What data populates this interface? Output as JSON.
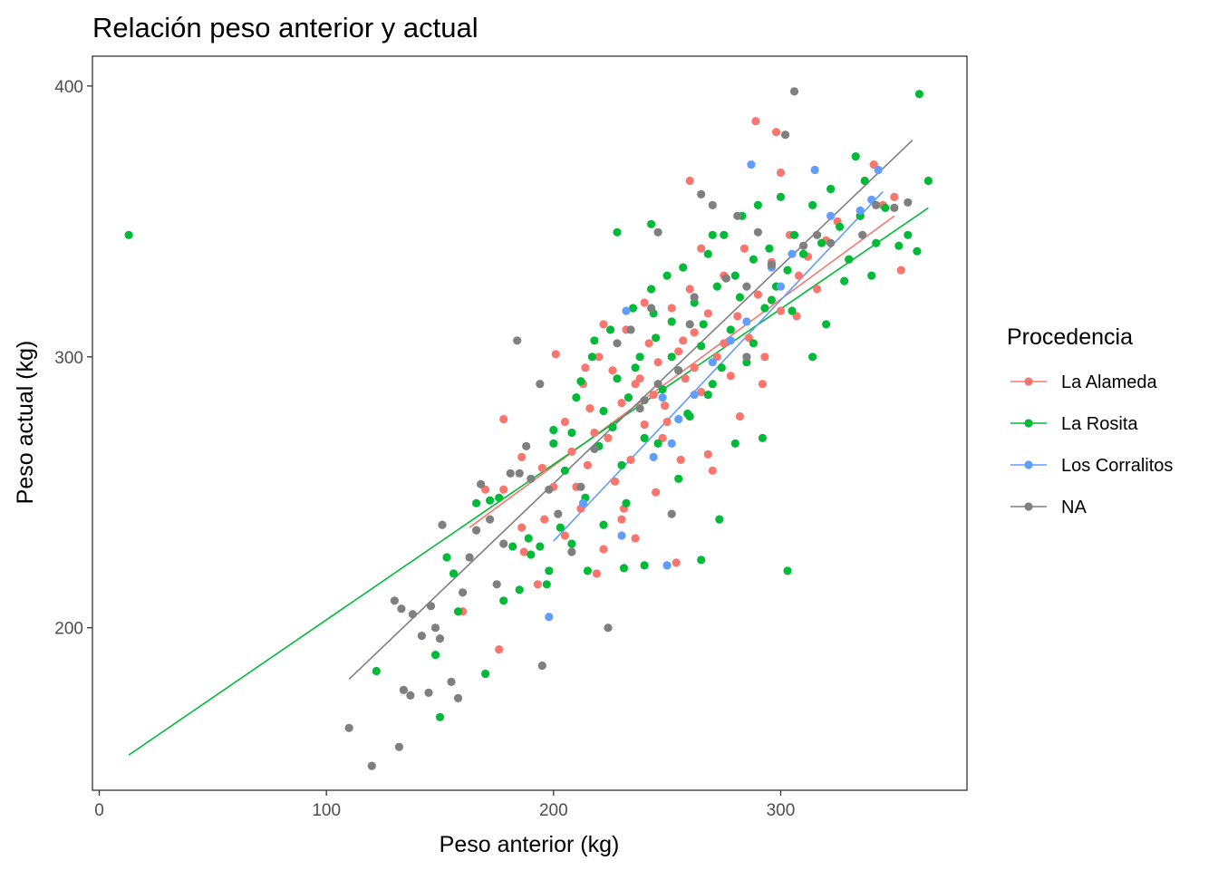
{
  "chart_data": {
    "type": "scatter",
    "title": "Relación peso anterior y actual",
    "xlabel": "Peso anterior (kg)",
    "ylabel": "Peso actual (kg)",
    "xlim": [
      -3,
      382
    ],
    "ylim": [
      140,
      411
    ],
    "x_ticks": [
      0,
      100,
      200,
      300
    ],
    "y_ticks": [
      200,
      300,
      400
    ],
    "grid": false,
    "legend": {
      "title": "Procedencia",
      "position": "right"
    },
    "series": [
      {
        "name": "La Alameda",
        "color": "#F8766D",
        "trend": {
          "x": [
            163,
            350
          ],
          "y": [
            237,
            352
          ]
        },
        "points": [
          [
            170,
            251
          ],
          [
            178,
            277
          ],
          [
            186,
            263
          ],
          [
            195,
            259
          ],
          [
            200,
            252
          ],
          [
            205,
            276
          ],
          [
            208,
            265
          ],
          [
            213,
            290
          ],
          [
            216,
            281
          ],
          [
            220,
            300
          ],
          [
            224,
            270
          ],
          [
            226,
            295
          ],
          [
            230,
            283
          ],
          [
            232,
            310
          ],
          [
            236,
            290
          ],
          [
            240,
            275
          ],
          [
            242,
            305
          ],
          [
            246,
            298
          ],
          [
            249,
            282
          ],
          [
            252,
            318
          ],
          [
            255,
            302
          ],
          [
            258,
            292
          ],
          [
            260,
            325
          ],
          [
            262,
            309
          ],
          [
            265,
            287
          ],
          [
            268,
            316
          ],
          [
            272,
            300
          ],
          [
            275,
            330
          ],
          [
            278,
            293
          ],
          [
            281,
            315
          ],
          [
            284,
            340
          ],
          [
            286,
            307
          ],
          [
            290,
            323
          ],
          [
            293,
            300
          ],
          [
            296,
            335
          ],
          [
            300,
            317
          ],
          [
            304,
            345
          ],
          [
            308,
            330
          ],
          [
            312,
            337
          ],
          [
            316,
            325
          ],
          [
            320,
            343
          ],
          [
            325,
            350
          ],
          [
            330,
            336
          ],
          [
            335,
            352
          ],
          [
            341,
            371
          ],
          [
            345,
            356
          ],
          [
            350,
            359
          ],
          [
            353,
            332
          ],
          [
            289,
            387
          ],
          [
            298,
            383
          ],
          [
            260,
            365
          ],
          [
            178,
            251
          ],
          [
            186,
            237
          ],
          [
            210,
            252
          ],
          [
            230,
            240
          ],
          [
            215,
            260
          ],
          [
            245,
            250
          ],
          [
            256,
            262
          ],
          [
            270,
            258
          ],
          [
            282,
            278
          ],
          [
            160,
            206
          ],
          [
            176,
            192
          ],
          [
            187,
            228
          ],
          [
            193,
            216
          ],
          [
            222,
            229
          ],
          [
            236,
            233
          ],
          [
            254,
            224
          ],
          [
            268,
            264
          ],
          [
            218,
            272
          ],
          [
            227,
            254
          ],
          [
            240,
            320
          ],
          [
            265,
            340
          ],
          [
            275,
            305
          ],
          [
            292,
            290
          ],
          [
            307,
            315
          ],
          [
            201,
            301
          ],
          [
            205,
            234
          ],
          [
            219,
            220
          ],
          [
            231,
            244
          ],
          [
            248,
            270
          ],
          [
            262,
            296
          ],
          [
            300,
            368
          ],
          [
            238,
            292
          ],
          [
            244,
            286
          ],
          [
            250,
            276
          ],
          [
            257,
            306
          ],
          [
            222,
            312
          ],
          [
            214,
            296
          ],
          [
            234,
            262
          ],
          [
            212,
            244
          ],
          [
            196,
            240
          ]
        ]
      },
      {
        "name": "La Rosita",
        "color": "#00BA38",
        "trend": {
          "x": [
            13,
            365
          ],
          "y": [
            153,
            355
          ]
        },
        "points": [
          [
            13,
            345
          ],
          [
            122,
            184
          ],
          [
            148,
            190
          ],
          [
            150,
            167
          ],
          [
            153,
            226
          ],
          [
            156,
            220
          ],
          [
            170,
            183
          ],
          [
            172,
            247
          ],
          [
            178,
            210
          ],
          [
            185,
            214
          ],
          [
            190,
            227
          ],
          [
            194,
            230
          ],
          [
            197,
            216
          ],
          [
            200,
            268
          ],
          [
            203,
            237
          ],
          [
            205,
            258
          ],
          [
            208,
            272
          ],
          [
            212,
            291
          ],
          [
            214,
            248
          ],
          [
            217,
            300
          ],
          [
            220,
            267
          ],
          [
            222,
            280
          ],
          [
            225,
            310
          ],
          [
            228,
            292
          ],
          [
            230,
            260
          ],
          [
            233,
            285
          ],
          [
            235,
            318
          ],
          [
            238,
            300
          ],
          [
            240,
            270
          ],
          [
            243,
            325
          ],
          [
            245,
            307
          ],
          [
            248,
            288
          ],
          [
            250,
            330
          ],
          [
            252,
            313
          ],
          [
            255,
            295
          ],
          [
            257,
            333
          ],
          [
            260,
            278
          ],
          [
            262,
            320
          ],
          [
            265,
            304
          ],
          [
            268,
            338
          ],
          [
            270,
            290
          ],
          [
            272,
            326
          ],
          [
            275,
            345
          ],
          [
            278,
            310
          ],
          [
            280,
            330
          ],
          [
            283,
            352
          ],
          [
            285,
            298
          ],
          [
            288,
            336
          ],
          [
            290,
            356
          ],
          [
            293,
            318
          ],
          [
            295,
            340
          ],
          [
            298,
            326
          ],
          [
            300,
            359
          ],
          [
            303,
            332
          ],
          [
            306,
            345
          ],
          [
            310,
            338
          ],
          [
            314,
            356
          ],
          [
            318,
            342
          ],
          [
            322,
            362
          ],
          [
            326,
            348
          ],
          [
            330,
            336
          ],
          [
            333,
            374
          ],
          [
            337,
            365
          ],
          [
            342,
            342
          ],
          [
            346,
            355
          ],
          [
            360,
            339
          ],
          [
            361,
            397
          ],
          [
            365,
            365
          ],
          [
            303,
            221
          ],
          [
            273,
            240
          ],
          [
            265,
            225
          ],
          [
            250,
            223
          ],
          [
            240,
            223
          ],
          [
            231,
            222
          ],
          [
            215,
            221
          ],
          [
            208,
            231
          ],
          [
            198,
            221
          ],
          [
            182,
            230
          ],
          [
            176,
            248
          ],
          [
            166,
            246
          ],
          [
            228,
            346
          ],
          [
            243,
            349
          ],
          [
            270,
            345
          ],
          [
            305,
            317
          ],
          [
            292,
            270
          ],
          [
            280,
            268
          ],
          [
            268,
            286
          ],
          [
            255,
            255
          ],
          [
            246,
            268
          ],
          [
            232,
            246
          ],
          [
            222,
            238
          ],
          [
            210,
            285
          ],
          [
            218,
            306
          ],
          [
            226,
            274
          ],
          [
            236,
            296
          ],
          [
            244,
            316
          ],
          [
            252,
            300
          ],
          [
            259,
            279
          ],
          [
            266,
            312
          ],
          [
            274,
            296
          ],
          [
            282,
            322
          ],
          [
            288,
            305
          ],
          [
            296,
            321
          ],
          [
            314,
            300
          ],
          [
            320,
            312
          ],
          [
            328,
            328
          ],
          [
            335,
            352
          ],
          [
            340,
            330
          ],
          [
            352,
            341
          ],
          [
            356,
            345
          ],
          [
            158,
            206
          ],
          [
            189,
            233
          ],
          [
            200,
            273
          ]
        ]
      },
      {
        "name": "Los Corralitos",
        "color": "#619CFF",
        "trend": {
          "x": [
            200,
            345
          ],
          "y": [
            232,
            361
          ]
        },
        "points": [
          [
            198,
            204
          ],
          [
            250,
            223
          ],
          [
            230,
            234
          ],
          [
            244,
            263
          ],
          [
            252,
            268
          ],
          [
            262,
            286
          ],
          [
            270,
            298
          ],
          [
            278,
            306
          ],
          [
            287,
            371
          ],
          [
            296,
            333
          ],
          [
            305,
            338
          ],
          [
            315,
            369
          ],
          [
            322,
            352
          ],
          [
            335,
            354
          ],
          [
            340,
            358
          ],
          [
            343,
            369
          ],
          [
            232,
            317
          ],
          [
            255,
            277
          ],
          [
            285,
            313
          ],
          [
            300,
            326
          ],
          [
            248,
            285
          ],
          [
            213,
            246
          ]
        ]
      },
      {
        "name": "NA",
        "color": "#7F7F7F",
        "trend": {
          "x": [
            110,
            358
          ],
          "y": [
            181,
            380
          ]
        },
        "points": [
          [
            110,
            163
          ],
          [
            120,
            149
          ],
          [
            132,
            156
          ],
          [
            130,
            210
          ],
          [
            133,
            207
          ],
          [
            134,
            177
          ],
          [
            137,
            175
          ],
          [
            138,
            205
          ],
          [
            142,
            197
          ],
          [
            145,
            176
          ],
          [
            146,
            208
          ],
          [
            148,
            200
          ],
          [
            150,
            196
          ],
          [
            151,
            238
          ],
          [
            155,
            180
          ],
          [
            158,
            174
          ],
          [
            160,
            213
          ],
          [
            163,
            226
          ],
          [
            166,
            236
          ],
          [
            168,
            253
          ],
          [
            172,
            240
          ],
          [
            175,
            216
          ],
          [
            178,
            231
          ],
          [
            181,
            257
          ],
          [
            184,
            306
          ],
          [
            185,
            257
          ],
          [
            188,
            267
          ],
          [
            190,
            255
          ],
          [
            194,
            290
          ],
          [
            195,
            186
          ],
          [
            198,
            251
          ],
          [
            202,
            242
          ],
          [
            208,
            228
          ],
          [
            212,
            252
          ],
          [
            218,
            266
          ],
          [
            224,
            200
          ],
          [
            228,
            305
          ],
          [
            234,
            310
          ],
          [
            240,
            284
          ],
          [
            246,
            290
          ],
          [
            252,
            242
          ],
          [
            255,
            295
          ],
          [
            260,
            312
          ],
          [
            265,
            360
          ],
          [
            270,
            356
          ],
          [
            276,
            329
          ],
          [
            281,
            352
          ],
          [
            285,
            326
          ],
          [
            290,
            346
          ],
          [
            296,
            334
          ],
          [
            302,
            382
          ],
          [
            306,
            398
          ],
          [
            310,
            341
          ],
          [
            316,
            345
          ],
          [
            322,
            342
          ],
          [
            336,
            345
          ],
          [
            342,
            356
          ],
          [
            350,
            355
          ],
          [
            356,
            357
          ],
          [
            246,
            346
          ],
          [
            243,
            318
          ],
          [
            238,
            281
          ],
          [
            262,
            322
          ],
          [
            285,
            300
          ]
        ]
      }
    ]
  }
}
